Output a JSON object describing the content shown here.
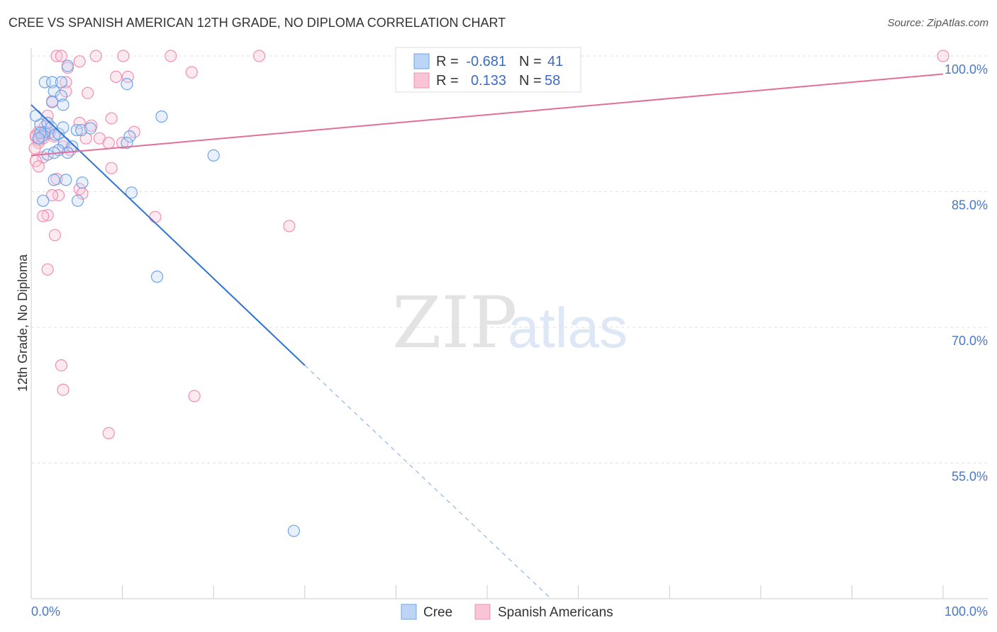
{
  "title": "CREE VS SPANISH AMERICAN 12TH GRADE, NO DIPLOMA CORRELATION CHART",
  "source": "Source: ZipAtlas.com",
  "watermark": {
    "zip": "ZIP",
    "atlas": "atlas"
  },
  "stats": {
    "r_label": "R =",
    "n_label": "N =",
    "rows": [
      {
        "series": "Cree",
        "r": "-0.681",
        "n": "41",
        "color": "#6fa3e8"
      },
      {
        "series": "Spanish Americans",
        "r": "0.133",
        "n": "58",
        "color": "#f08fb0"
      }
    ]
  },
  "chart_data": {
    "type": "scatter",
    "title": "CREE VS SPANISH AMERICAN 12TH GRADE, NO DIPLOMA CORRELATION CHART",
    "xlabel": "",
    "ylabel": "12th Grade, No Diploma",
    "xlim": [
      0,
      100
    ],
    "ylim": [
      40,
      100
    ],
    "x_tick_labels": [
      {
        "value": 0,
        "label": "0.0%"
      },
      {
        "value": 100,
        "label": "100.0%"
      }
    ],
    "y_ticks": [
      {
        "value": 100,
        "label": "100.0%"
      },
      {
        "value": 85,
        "label": "85.0%"
      },
      {
        "value": 70,
        "label": "70.0%"
      },
      {
        "value": 55,
        "label": "55.0%"
      }
    ],
    "legend_position": "bottom-center",
    "series": [
      {
        "name": "Cree",
        "color": "#6fa3e8",
        "trend": {
          "x0": 0,
          "y0": 94.6,
          "x1": 30,
          "y1": 65.8,
          "dash_to_x": 57,
          "dash_to_y": 40
        },
        "points": [
          [
            1.0,
            92.4
          ],
          [
            1.5,
            91.6
          ],
          [
            1.2,
            91.1
          ],
          [
            1.8,
            92.6
          ],
          [
            2.2,
            92.1
          ],
          [
            2.6,
            91.3
          ],
          [
            0.5,
            93.4
          ],
          [
            3.0,
            91.4
          ],
          [
            3.6,
            90.4
          ],
          [
            4.5,
            90.0
          ],
          [
            4.0,
            89.3
          ],
          [
            3.0,
            89.6
          ],
          [
            1.8,
            89.1
          ],
          [
            2.5,
            89.3
          ],
          [
            1.5,
            97.1
          ],
          [
            2.3,
            97.1
          ],
          [
            3.3,
            97.1
          ],
          [
            2.5,
            96.1
          ],
          [
            3.3,
            95.6
          ],
          [
            3.5,
            94.6
          ],
          [
            2.3,
            94.9
          ],
          [
            3.5,
            92.1
          ],
          [
            5.0,
            91.8
          ],
          [
            5.5,
            91.8
          ],
          [
            3.8,
            86.3
          ],
          [
            2.5,
            86.3
          ],
          [
            5.6,
            86.0
          ],
          [
            5.1,
            84.0
          ],
          [
            1.3,
            84.0
          ],
          [
            10.8,
            91.1
          ],
          [
            10.5,
            90.4
          ],
          [
            14.3,
            93.3
          ],
          [
            11.0,
            84.9
          ],
          [
            20.0,
            89.0
          ],
          [
            13.8,
            75.6
          ],
          [
            28.8,
            47.5
          ],
          [
            10.5,
            96.9
          ],
          [
            4.0,
            98.9
          ],
          [
            1.0,
            91.5
          ],
          [
            0.8,
            90.9
          ],
          [
            6.5,
            92.0
          ]
        ]
      },
      {
        "name": "Spanish Americans",
        "color": "#f08fb0",
        "trend": {
          "x0": 0,
          "y0": 89.0,
          "x1": 100,
          "y1": 98.0
        },
        "points": [
          [
            2.8,
            100.0
          ],
          [
            3.3,
            100.0
          ],
          [
            7.1,
            100.0
          ],
          [
            10.1,
            100.0
          ],
          [
            15.3,
            100.0
          ],
          [
            25.0,
            100.0
          ],
          [
            100.0,
            100.0
          ],
          [
            5.3,
            99.4
          ],
          [
            4.0,
            98.7
          ],
          [
            17.6,
            98.2
          ],
          [
            9.3,
            97.7
          ],
          [
            10.6,
            97.7
          ],
          [
            3.8,
            97.1
          ],
          [
            3.8,
            96.1
          ],
          [
            1.8,
            93.4
          ],
          [
            8.8,
            93.1
          ],
          [
            6.6,
            92.3
          ],
          [
            5.3,
            92.6
          ],
          [
            11.3,
            91.6
          ],
          [
            0.5,
            91.1
          ],
          [
            2.5,
            91.1
          ],
          [
            1.5,
            91.6
          ],
          [
            0.8,
            90.4
          ],
          [
            1.3,
            90.9
          ],
          [
            6.0,
            90.9
          ],
          [
            7.5,
            90.9
          ],
          [
            10.0,
            90.4
          ],
          [
            8.5,
            90.4
          ],
          [
            3.5,
            90.0
          ],
          [
            4.3,
            89.6
          ],
          [
            1.3,
            88.8
          ],
          [
            0.5,
            88.4
          ],
          [
            0.8,
            87.8
          ],
          [
            8.8,
            87.6
          ],
          [
            2.8,
            86.4
          ],
          [
            5.3,
            85.3
          ],
          [
            5.6,
            84.8
          ],
          [
            3.0,
            84.6
          ],
          [
            2.3,
            84.6
          ],
          [
            1.8,
            82.4
          ],
          [
            1.3,
            82.3
          ],
          [
            13.6,
            82.2
          ],
          [
            28.3,
            81.2
          ],
          [
            2.6,
            80.2
          ],
          [
            1.8,
            76.4
          ],
          [
            3.3,
            65.8
          ],
          [
            3.5,
            63.1
          ],
          [
            17.9,
            62.4
          ],
          [
            8.5,
            58.3
          ],
          [
            0.8,
            91.6
          ],
          [
            1.5,
            91.4
          ],
          [
            2.0,
            91.5
          ],
          [
            0.5,
            91.2
          ],
          [
            0.8,
            90.7
          ],
          [
            6.2,
            95.9
          ],
          [
            2.3,
            95.0
          ],
          [
            0.4,
            89.8
          ],
          [
            1.5,
            92.2
          ]
        ]
      }
    ]
  }
}
